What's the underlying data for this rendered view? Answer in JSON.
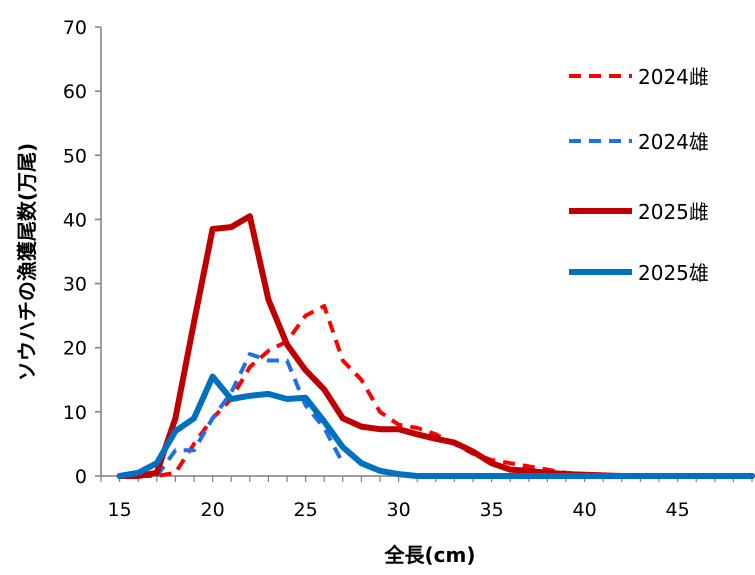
{
  "chart_data": {
    "type": "line",
    "xlabel": "全長(cm)",
    "ylabel": "ソウハチの漁獲尾数(万尾)",
    "xlim": [
      14,
      49
    ],
    "ylim": [
      0,
      70
    ],
    "x_ticks": [
      "15",
      "20",
      "25",
      "30",
      "35",
      "40",
      "45"
    ],
    "y_ticks": [
      "0",
      "10",
      "20",
      "30",
      "40",
      "50",
      "60",
      "70"
    ],
    "grid": false,
    "legend_position": "right",
    "series": [
      {
        "name": "2024雌",
        "color": "#ff0000",
        "dashed": true,
        "x": [
          15,
          16,
          17,
          18,
          19,
          20,
          21,
          22,
          23,
          24,
          25,
          26,
          27,
          28,
          29,
          30,
          31,
          32,
          33,
          34,
          35,
          36,
          37,
          38,
          39,
          40,
          41,
          42,
          43,
          44,
          45,
          46,
          47,
          48,
          49
        ],
        "y": [
          0,
          0,
          0,
          0.5,
          5,
          9,
          12,
          17,
          19.5,
          21,
          25,
          26.5,
          18,
          15,
          10,
          8,
          7.5,
          6.5,
          5,
          3.5,
          2.5,
          2,
          1.5,
          1,
          0.5,
          0.2,
          0.1,
          0,
          0,
          0,
          0,
          0,
          0,
          0,
          0
        ]
      },
      {
        "name": "2024雄",
        "color": "#1f6fe5",
        "dashed": true,
        "x": [
          17,
          18,
          19,
          20,
          21,
          22,
          23,
          24,
          25,
          26,
          27
        ],
        "y": [
          0,
          4,
          4,
          9,
          13,
          19,
          18,
          18,
          11,
          7.5,
          2
        ]
      },
      {
        "name": "2025雌",
        "color": "#c00000",
        "dashed": false,
        "x": [
          15,
          16,
          17,
          18,
          19,
          20,
          21,
          22,
          23,
          24,
          25,
          26,
          27,
          28,
          29,
          30,
          31,
          32,
          33,
          34,
          35,
          36,
          37,
          38,
          39,
          40,
          41,
          42,
          43,
          44,
          45,
          46,
          47,
          48,
          49
        ],
        "y": [
          0,
          0,
          0.5,
          9,
          24,
          38.5,
          38.8,
          40.5,
          27.5,
          20.5,
          16.5,
          13.5,
          9,
          7.7,
          7.3,
          7.3,
          6.5,
          5.8,
          5.2,
          3.8,
          2,
          1,
          0.8,
          0.5,
          0.3,
          0.2,
          0.1,
          0,
          0,
          0,
          0,
          0,
          0,
          0,
          0
        ]
      },
      {
        "name": "2025雄",
        "color": "#0070c0",
        "dashed": false,
        "x": [
          15,
          16,
          17,
          18,
          19,
          20,
          21,
          22,
          23,
          24,
          25,
          26,
          27,
          28,
          29,
          30,
          31,
          32,
          33,
          34,
          35,
          36,
          37,
          38,
          39,
          40,
          41,
          42,
          43,
          44,
          45,
          46,
          47,
          48,
          49
        ],
        "y": [
          0,
          0.5,
          2,
          7,
          9,
          15.5,
          12,
          12.5,
          12.8,
          12,
          12.2,
          8.5,
          4.5,
          2,
          0.8,
          0.3,
          0,
          0,
          0,
          0,
          0,
          0,
          0,
          0,
          0,
          0,
          0,
          0,
          0,
          0,
          0,
          0,
          0,
          0,
          0
        ]
      }
    ]
  }
}
